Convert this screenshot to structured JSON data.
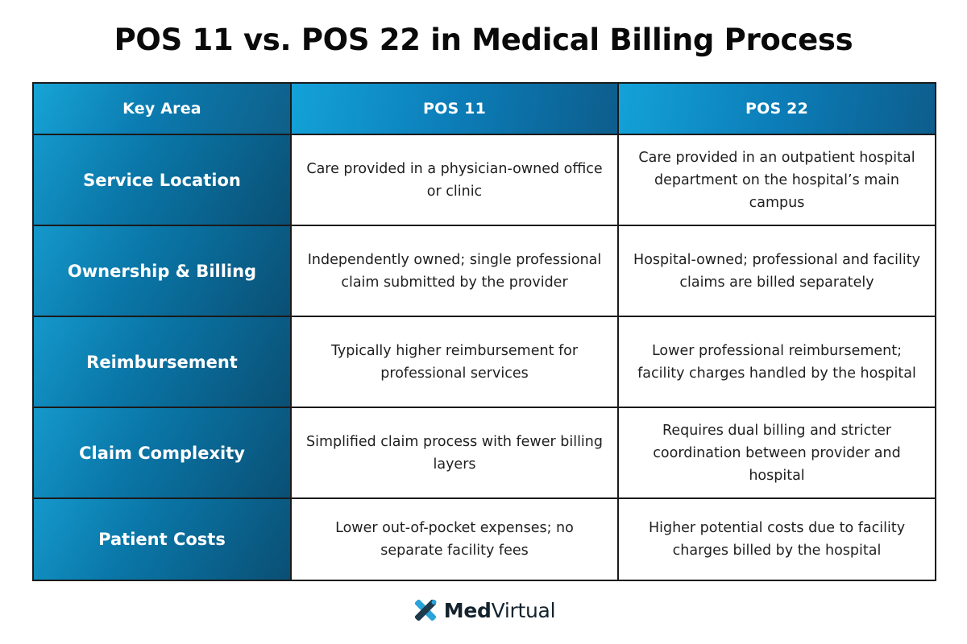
{
  "title": "POS 11 vs. POS 22 in Medical Billing Process",
  "table": {
    "headers": [
      "Key Area",
      "POS 11",
      "POS 22"
    ],
    "rows": [
      {
        "key": "Service Location",
        "pos11": "Care provided in a physician-owned office or clinic",
        "pos22": "Care provided in an outpatient hospital department on the hospital’s main campus"
      },
      {
        "key": "Ownership & Billing",
        "pos11": "Independently owned; single professional claim submitted by the provider",
        "pos22": "Hospital-owned; professional and facility claims are billed separately"
      },
      {
        "key": "Reimbursement",
        "pos11": "Typically higher reimbursement for professional services",
        "pos22": "Lower professional reimbursement; facility charges handled by the hospital"
      },
      {
        "key": "Claim Complexity",
        "pos11": "Simplified claim process with fewer billing layers",
        "pos22": "Requires dual billing and stricter coordination between provider and hospital"
      },
      {
        "key": "Patient Costs",
        "pos11": "Lower out-of-pocket expenses; no separate facility fees",
        "pos22": "Higher potential costs due to facility charges billed by the hospital"
      }
    ]
  },
  "logo": {
    "icon": "medvirtual-logo-icon",
    "text_bold": "Med",
    "text_light": "Virtual"
  },
  "colors": {
    "header_blue": "#0b7bb0",
    "accent_light_blue": "#17a4d6",
    "accent_dark_blue": "#0a4f74",
    "border": "#1a1a1a",
    "title_text": "#0a0a0a"
  }
}
